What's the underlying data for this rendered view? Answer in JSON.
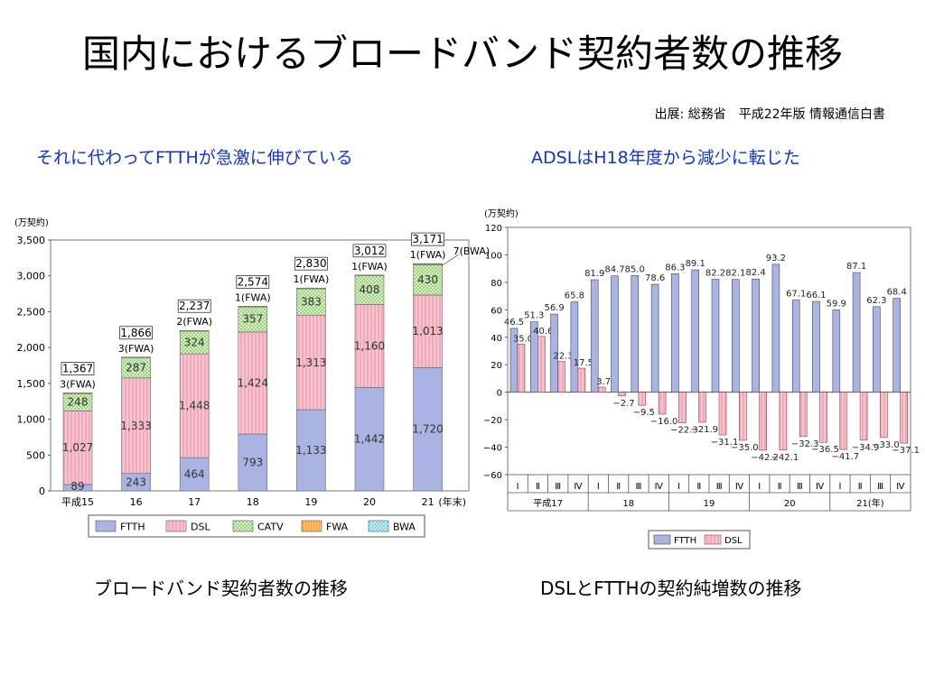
{
  "slide": {
    "title": "国内におけるブロードバンド契約者数の推移",
    "source": "出展: 総務省　平成22年版 情報通信白書",
    "subtitle_left": "それに代わってFTTHが急激に伸びている",
    "subtitle_right": "ADSLはH18年度から減少に転じた",
    "caption_left": "ブロードバンド契約者数の推移",
    "caption_right": "DSLとFTTHの契約純増数の推移"
  },
  "colors": {
    "ftth": "#aab4e2",
    "dsl": "#f2a9b9",
    "catv": "#9fd182",
    "fwa": "#f5a23c",
    "bwa": "#7fd3e6"
  },
  "chart_data": [
    {
      "type": "bar",
      "stacked": true,
      "ylabel": "(万契約)",
      "ylim": [
        0,
        3500
      ],
      "yticks": [
        "0",
        "500",
        "1,000",
        "1,500",
        "2,000",
        "2,500",
        "3,000",
        "3,500"
      ],
      "xlabel": "(年末)",
      "categories": [
        "平成15",
        "16",
        "17",
        "18",
        "19",
        "20",
        "21"
      ],
      "series": [
        {
          "name": "FTTH",
          "values": [
            89,
            243,
            464,
            793,
            1133,
            1442,
            1720
          ]
        },
        {
          "name": "DSL",
          "values": [
            1027,
            1333,
            1448,
            1424,
            1313,
            1160,
            1013
          ]
        },
        {
          "name": "CATV",
          "values": [
            248,
            287,
            324,
            357,
            383,
            408,
            430
          ]
        },
        {
          "name": "FWA",
          "values": [
            3,
            3,
            2,
            1,
            1,
            1,
            1
          ]
        },
        {
          "name": "BWA",
          "values": [
            0,
            0,
            0,
            0,
            0,
            0,
            7
          ]
        }
      ],
      "segment_labels": [
        [
          "89",
          "1,027",
          "248"
        ],
        [
          "243",
          "1,333",
          "287"
        ],
        [
          "464",
          "1,448",
          "324"
        ],
        [
          "793",
          "1,424",
          "357"
        ],
        [
          "1,133",
          "1,313",
          "383"
        ],
        [
          "1,442",
          "1,160",
          "408"
        ],
        [
          "1,720",
          "1,013",
          "430"
        ]
      ],
      "totals": [
        "1,367",
        "1,866",
        "2,237",
        "2,574",
        "2,830",
        "3,012",
        "3,171"
      ],
      "fwa_labels": [
        "3(FWA)",
        "3(FWA)",
        "2(FWA)",
        "1(FWA)",
        "1(FWA)",
        "1(FWA)",
        "1(FWA)"
      ],
      "bwa_label": "7(BWA)",
      "legend": [
        "FTTH",
        "DSL",
        "CATV",
        "FWA",
        "BWA"
      ],
      "legend_position": "bottom"
    },
    {
      "type": "bar",
      "ylabel": "(万契約)",
      "ylim": [
        -60,
        120
      ],
      "yticks": [
        "−60",
        "−40",
        "−20",
        "0",
        "20",
        "40",
        "60",
        "80",
        "100",
        "120"
      ],
      "quarters": [
        "Ⅰ",
        "Ⅱ",
        "Ⅲ",
        "Ⅳ",
        "Ⅰ",
        "Ⅱ",
        "Ⅲ",
        "Ⅳ",
        "Ⅰ",
        "Ⅱ",
        "Ⅲ",
        "Ⅳ",
        "Ⅰ",
        "Ⅱ",
        "Ⅲ",
        "Ⅳ",
        "Ⅰ",
        "Ⅱ",
        "Ⅲ",
        "Ⅳ"
      ],
      "years": [
        "平成17",
        "18",
        "19",
        "20",
        "21(年)"
      ],
      "series": [
        {
          "name": "FTTH",
          "values": [
            46.5,
            51.3,
            56.9,
            65.8,
            81.9,
            84.7,
            85.0,
            78.6,
            86.3,
            89.1,
            82.2,
            82.1,
            82.4,
            93.2,
            67.1,
            66.1,
            59.9,
            87.1,
            62.3,
            68.4
          ]
        },
        {
          "name": "DSL",
          "values": [
            35.0,
            40.6,
            22.3,
            17.5,
            3.7,
            -2.7,
            -9.5,
            -16.0,
            -22.3,
            -21.9,
            -31.1,
            -35.0,
            -42.2,
            -42.1,
            -32.3,
            -36.5,
            -41.7,
            -34.9,
            -33.0,
            -37.1
          ]
        }
      ],
      "ftth_labels": [
        "46.5",
        "51.3",
        "56.9",
        "65.8",
        "81.9",
        "84.7",
        "85.0",
        "78.6",
        "86.3",
        "89.1",
        "82.2",
        "82.1",
        "82.4",
        "93.2",
        "67.1",
        "66.1",
        "59.9",
        "87.1",
        "62.3",
        "68.4"
      ],
      "dsl_labels": [
        "35.0",
        "40.6",
        "22.3",
        "17.5",
        "3.7",
        "−2.7",
        "−9.5",
        "−16.0",
        "−22.3",
        "−21.9",
        "−31.1",
        "−35.0",
        "−42.2",
        "−42.1",
        "−32.3",
        "−36.5",
        "−41.7",
        "−34.9",
        "−33.0",
        "−37.1"
      ],
      "legend": [
        "FTTH",
        "DSL"
      ],
      "legend_position": "bottom"
    }
  ]
}
